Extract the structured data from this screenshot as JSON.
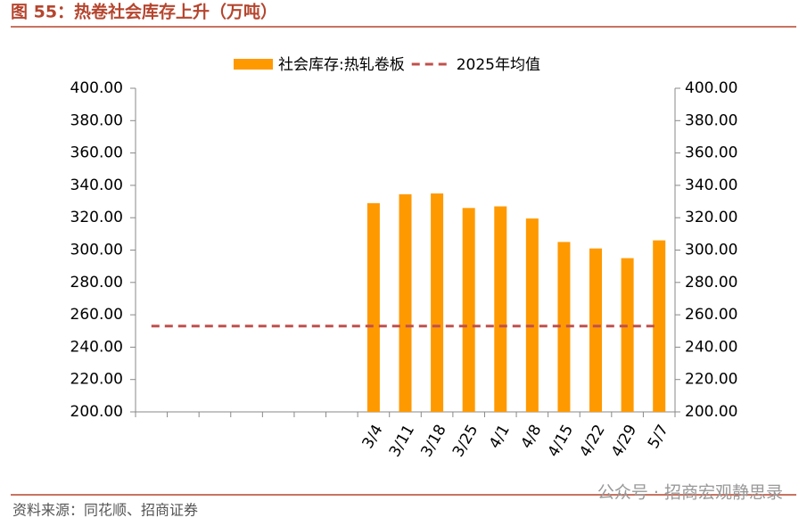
{
  "header": {
    "title": "图 55：热卷社会库存上升（万吨）"
  },
  "chart_data": {
    "type": "bar",
    "categories": [
      null,
      null,
      null,
      null,
      null,
      null,
      null,
      "3/4",
      "3/11",
      "3/18",
      "3/25",
      "4/1",
      "4/8",
      "4/15",
      "4/22",
      "4/29",
      "5/7"
    ],
    "series": [
      {
        "name": "社会库存:热轧卷板",
        "type": "bar",
        "color": "#ff9900",
        "values": [
          null,
          null,
          null,
          null,
          null,
          null,
          null,
          329,
          334.5,
          335,
          326,
          327,
          319.5,
          305,
          301,
          295,
          306
        ]
      },
      {
        "name": "2025年均值",
        "type": "line",
        "dashed": true,
        "color": "#c0504d",
        "values": [
          253,
          253,
          253,
          253,
          253,
          253,
          253,
          253,
          253,
          253,
          253,
          253,
          253,
          253,
          253,
          253,
          253
        ]
      }
    ],
    "ylim": [
      200,
      400
    ],
    "yticks": [
      {
        "value": 200,
        "label": "200.00"
      },
      {
        "value": 220,
        "label": "220.00"
      },
      {
        "value": 240,
        "label": "240.00"
      },
      {
        "value": 260,
        "label": "260.00"
      },
      {
        "value": 280,
        "label": "280.00"
      },
      {
        "value": 300,
        "label": "300.00"
      },
      {
        "value": 320,
        "label": "320.00"
      },
      {
        "value": 340,
        "label": "340.00"
      },
      {
        "value": 360,
        "label": "360.00"
      },
      {
        "value": 380,
        "label": "380.00"
      },
      {
        "value": 400,
        "label": "400.00"
      }
    ],
    "y2lim": [
      200,
      400
    ],
    "y2ticks": [
      {
        "value": 200,
        "label": "200.00"
      },
      {
        "value": 220,
        "label": "220.00"
      },
      {
        "value": 240,
        "label": "240.00"
      },
      {
        "value": 260,
        "label": "260.00"
      },
      {
        "value": 280,
        "label": "280.00"
      },
      {
        "value": 300,
        "label": "300.00"
      },
      {
        "value": 320,
        "label": "320.00"
      },
      {
        "value": 340,
        "label": "340.00"
      },
      {
        "value": 360,
        "label": "360.00"
      },
      {
        "value": 380,
        "label": "380.00"
      },
      {
        "value": 400,
        "label": "400.00"
      }
    ],
    "legend": "top",
    "grid": false
  },
  "footer": {
    "source": "资料来源：同花顺、招商证券",
    "watermark": "公众号 · 招商宏观静思录"
  }
}
